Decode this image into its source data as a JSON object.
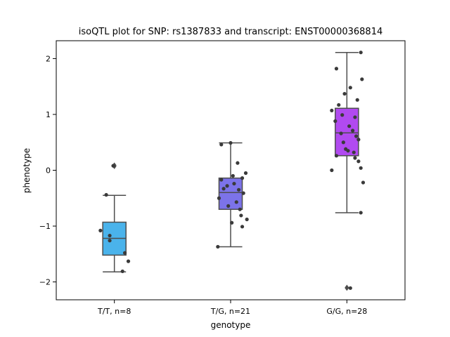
{
  "chart_data": {
    "type": "box",
    "title": "isoQTL plot for SNP: rs1387833 and transcript: ENST00000368814",
    "xlabel": "genotype",
    "ylabel": "phenotype",
    "ylim": [
      -2.32,
      2.32
    ],
    "yticks": [
      -2,
      -1,
      0,
      1,
      2
    ],
    "ytick_labels": [
      "−2",
      "−1",
      "0",
      "1",
      "2"
    ],
    "grid": false,
    "categories": [
      "T/T, n=8",
      "T/G, n=21",
      "G/G, n=28"
    ],
    "box_colors": [
      "#4ab3eb",
      "#7c73e9",
      "#b14af0"
    ],
    "point_color": "#3a3a3a",
    "line_color": "#4d4d4d",
    "boxes": [
      {
        "q1": -1.52,
        "median": -1.22,
        "q3": -0.93,
        "whisker_low": -1.82,
        "whisker_high": -0.45,
        "outliers": [
          0.07,
          0.09
        ]
      },
      {
        "q1": -0.7,
        "median": -0.4,
        "q3": -0.14,
        "whisker_low": -1.37,
        "whisker_high": 0.49,
        "outliers": []
      },
      {
        "q1": 0.26,
        "median": 0.67,
        "q3": 1.11,
        "whisker_low": -0.76,
        "whisker_high": 2.11,
        "outliers": [
          -2.1,
          -2.11
        ]
      }
    ],
    "points": [
      {
        "category": 0,
        "values": [
          0.08,
          -0.44,
          -1.08,
          -1.17,
          -1.26,
          -1.48,
          -1.63,
          -1.81
        ],
        "jitter": [
          -0.01,
          -0.07,
          -0.12,
          -0.04,
          -0.04,
          0.09,
          0.12,
          0.07
        ]
      },
      {
        "category": 1,
        "values": [
          0.49,
          0.46,
          0.13,
          -0.05,
          -0.1,
          -0.14,
          -0.17,
          -0.24,
          -0.28,
          -0.33,
          -0.35,
          -0.41,
          -0.5,
          -0.57,
          -0.64,
          -0.7,
          -0.81,
          -0.88,
          -0.94,
          -1.01,
          -1.37
        ],
        "jitter": [
          0.0,
          -0.08,
          0.06,
          0.13,
          0.02,
          0.1,
          -0.08,
          0.03,
          -0.03,
          -0.06,
          0.07,
          0.11,
          -0.1,
          0.05,
          -0.02,
          0.08,
          0.09,
          0.14,
          0.01,
          0.1,
          -0.11
        ],
        "note_removed": null
      },
      {
        "category": 2,
        "values": [
          2.11,
          1.82,
          1.63,
          1.48,
          1.37,
          1.26,
          1.17,
          1.07,
          0.99,
          0.95,
          0.88,
          0.79,
          0.71,
          0.66,
          0.61,
          0.55,
          0.5,
          0.38,
          0.35,
          0.32,
          0.26,
          0.22,
          0.16,
          0.04,
          0.0,
          -0.22,
          -0.76,
          -2.11
        ],
        "jitter": [
          0.12,
          -0.09,
          0.13,
          0.03,
          -0.02,
          0.09,
          -0.07,
          -0.13,
          -0.04,
          0.07,
          -0.1,
          0.02,
          0.05,
          -0.05,
          0.08,
          0.1,
          -0.03,
          -0.01,
          0.01,
          0.06,
          -0.09,
          0.07,
          0.1,
          0.12,
          -0.13,
          0.14,
          0.12,
          0.03
        ]
      }
    ]
  }
}
